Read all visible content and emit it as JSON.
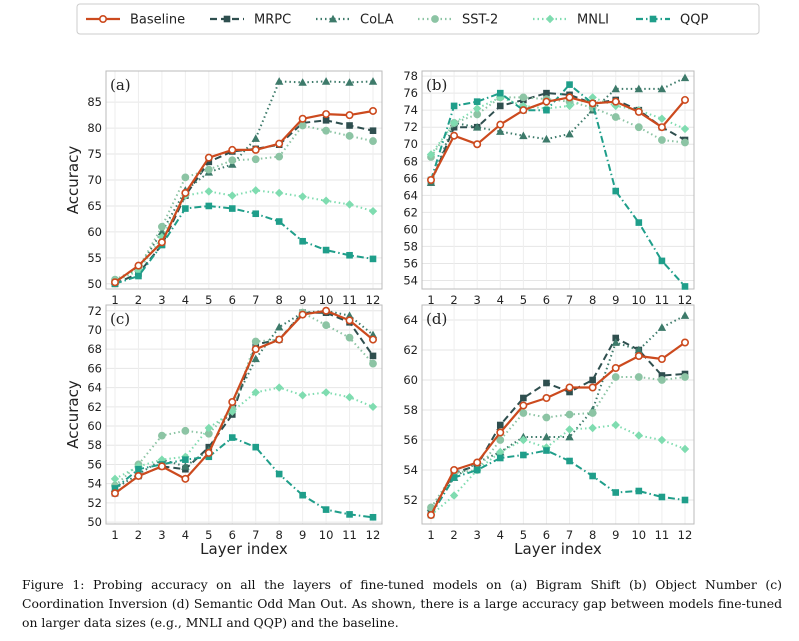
{
  "caption": "Figure 1: Probing accuracy on all the layers of fine-tuned models on (a) Bigram Shift (b) Object Number (c) Coordination Inversion (d) Semantic Odd Man Out. As shown, there is a large accuracy gap between models fine-tuned on larger data sizes (e.g., MNLI and QQP) and the baseline.",
  "legend": [
    {
      "name": "Baseline",
      "color": "#cc4a1e",
      "dash": "solid",
      "marker": "circle-open"
    },
    {
      "name": "MRPC",
      "color": "#2f4f4f",
      "dash": "dashed",
      "marker": "square"
    },
    {
      "name": "CoLA",
      "color": "#3d7a6a",
      "dash": "dotted",
      "marker": "triangle"
    },
    {
      "name": "SST-2",
      "color": "#8cc4a4",
      "dash": "dotted",
      "marker": "circle"
    },
    {
      "name": "MNLI",
      "color": "#7fdcb0",
      "dash": "dotted",
      "marker": "diamond"
    },
    {
      "name": "QQP",
      "color": "#1f9e8a",
      "dash": "dashdot",
      "marker": "square"
    }
  ],
  "chart_data": [
    {
      "type": "line",
      "panel": "(a)",
      "xlabel": "",
      "ylabel": "Accuracy",
      "x": [
        1,
        2,
        3,
        4,
        5,
        6,
        7,
        8,
        9,
        10,
        11,
        12
      ],
      "ylim": [
        49,
        91
      ],
      "yticks": [
        50,
        55,
        60,
        65,
        70,
        75,
        80,
        85
      ],
      "series": [
        {
          "name": "Baseline",
          "values": [
            50.3,
            53.5,
            58.0,
            67.5,
            74.3,
            75.8,
            75.8,
            77.0,
            81.8,
            82.7,
            82.5,
            83.3
          ]
        },
        {
          "name": "MRPC",
          "values": [
            50.0,
            52.0,
            57.5,
            67.0,
            73.5,
            75.5,
            76.0,
            76.8,
            81.0,
            81.5,
            80.5,
            79.5
          ]
        },
        {
          "name": "CoLA",
          "values": [
            50.5,
            53.0,
            60.0,
            68.0,
            71.5,
            73.0,
            78.0,
            89.0,
            88.8,
            89.0,
            88.8,
            89.0
          ]
        },
        {
          "name": "SST-2",
          "values": [
            50.8,
            53.0,
            61.0,
            70.5,
            72.0,
            73.8,
            74.0,
            74.5,
            80.5,
            79.5,
            78.5,
            77.5
          ]
        },
        {
          "name": "MNLI",
          "values": [
            50.5,
            52.5,
            59.0,
            67.0,
            67.8,
            67.0,
            68.0,
            67.5,
            66.8,
            66.0,
            65.3,
            64.0
          ]
        },
        {
          "name": "QQP",
          "values": [
            50.0,
            51.5,
            57.5,
            64.5,
            65.0,
            64.5,
            63.5,
            62.0,
            58.2,
            56.5,
            55.5,
            54.8
          ]
        }
      ]
    },
    {
      "type": "line",
      "panel": "(b)",
      "xlabel": "",
      "ylabel": "",
      "x": [
        1,
        2,
        3,
        4,
        5,
        6,
        7,
        8,
        9,
        10,
        11,
        12
      ],
      "ylim": [
        53,
        78.6
      ],
      "yticks": [
        54,
        56,
        58,
        60,
        62,
        64,
        66,
        68,
        70,
        72,
        74,
        76,
        78
      ],
      "series": [
        {
          "name": "Baseline",
          "values": [
            65.8,
            71.0,
            70.0,
            72.3,
            74.0,
            75.0,
            75.5,
            74.8,
            75.0,
            73.8,
            72.0,
            75.2
          ]
        },
        {
          "name": "MRPC",
          "values": [
            65.5,
            72.0,
            72.0,
            74.5,
            75.2,
            76.0,
            75.8,
            74.8,
            75.2,
            74.0,
            72.0,
            70.5
          ]
        },
        {
          "name": "CoLA",
          "values": [
            65.5,
            72.5,
            72.0,
            71.5,
            71.0,
            70.6,
            71.2,
            74.0,
            76.5,
            76.5,
            76.5,
            77.8
          ]
        },
        {
          "name": "SST-2",
          "values": [
            68.5,
            72.5,
            73.5,
            75.5,
            75.5,
            75.3,
            75.0,
            74.3,
            73.2,
            72.0,
            70.5,
            70.2
          ]
        },
        {
          "name": "MNLI",
          "values": [
            68.8,
            72.5,
            74.2,
            75.5,
            74.5,
            74.2,
            74.5,
            75.5,
            74.5,
            74.0,
            73.0,
            71.8
          ]
        },
        {
          "name": "QQP",
          "values": [
            65.8,
            74.5,
            75.0,
            76.0,
            74.0,
            74.0,
            77.0,
            74.8,
            64.5,
            60.8,
            56.3,
            53.3
          ]
        }
      ]
    },
    {
      "type": "line",
      "panel": "(c)",
      "xlabel": "Layer index",
      "ylabel": "Accuracy",
      "x": [
        1,
        2,
        3,
        4,
        5,
        6,
        7,
        8,
        9,
        10,
        11,
        12
      ],
      "ylim": [
        49.8,
        72.6
      ],
      "yticks": [
        50,
        52,
        54,
        56,
        58,
        60,
        62,
        64,
        66,
        68,
        70,
        72
      ],
      "series": [
        {
          "name": "Baseline",
          "values": [
            53.0,
            54.8,
            55.8,
            54.5,
            57.2,
            62.5,
            68.0,
            69.0,
            71.6,
            72.0,
            71.0,
            69.0
          ]
        },
        {
          "name": "MRPC",
          "values": [
            53.0,
            54.8,
            55.8,
            55.5,
            57.8,
            61.2,
            68.5,
            69.0,
            71.8,
            71.8,
            70.8,
            67.3
          ]
        },
        {
          "name": "CoLA",
          "values": [
            53.5,
            55.0,
            56.5,
            55.8,
            57.5,
            62.0,
            67.0,
            70.3,
            71.8,
            72.0,
            71.5,
            69.5
          ]
        },
        {
          "name": "SST-2",
          "values": [
            53.8,
            56.0,
            59.0,
            59.5,
            59.2,
            61.8,
            68.8,
            69.0,
            71.8,
            70.5,
            69.2,
            66.5
          ]
        },
        {
          "name": "MNLI",
          "values": [
            54.5,
            55.8,
            56.5,
            56.8,
            59.8,
            61.5,
            63.5,
            64.0,
            63.2,
            63.5,
            63.0,
            62.0
          ]
        },
        {
          "name": "QQP",
          "values": [
            53.5,
            55.5,
            56.0,
            56.5,
            56.8,
            58.8,
            57.8,
            55.0,
            52.8,
            51.3,
            50.8,
            50.5
          ]
        }
      ]
    },
    {
      "type": "line",
      "panel": "(d)",
      "xlabel": "Layer index",
      "ylabel": "",
      "x": [
        1,
        2,
        3,
        4,
        5,
        6,
        7,
        8,
        9,
        10,
        11,
        12
      ],
      "ylim": [
        50.4,
        65.0
      ],
      "yticks": [
        52,
        54,
        56,
        58,
        60,
        62,
        64
      ],
      "series": [
        {
          "name": "Baseline",
          "values": [
            51.0,
            54.0,
            54.5,
            56.5,
            58.3,
            58.8,
            59.5,
            59.5,
            60.8,
            61.6,
            61.4,
            62.5
          ]
        },
        {
          "name": "MRPC",
          "values": [
            51.2,
            53.8,
            54.3,
            57.0,
            58.8,
            59.8,
            59.2,
            60.0,
            62.8,
            62.0,
            60.3,
            60.4
          ]
        },
        {
          "name": "CoLA",
          "values": [
            51.5,
            53.5,
            54.5,
            55.2,
            56.2,
            56.2,
            56.2,
            58.0,
            62.5,
            62.0,
            63.5,
            64.3
          ]
        },
        {
          "name": "SST-2",
          "values": [
            51.5,
            53.8,
            54.0,
            56.0,
            57.8,
            57.5,
            57.7,
            57.8,
            60.2,
            60.2,
            60.0,
            60.2
          ]
        },
        {
          "name": "MNLI",
          "values": [
            51.0,
            52.3,
            54.0,
            55.2,
            56.0,
            55.5,
            56.7,
            56.8,
            57.0,
            56.3,
            56.0,
            55.4
          ]
        },
        {
          "name": "QQP",
          "values": [
            51.0,
            53.5,
            54.0,
            54.8,
            55.0,
            55.3,
            54.6,
            53.6,
            52.5,
            52.6,
            52.2,
            52.0
          ]
        }
      ]
    }
  ]
}
